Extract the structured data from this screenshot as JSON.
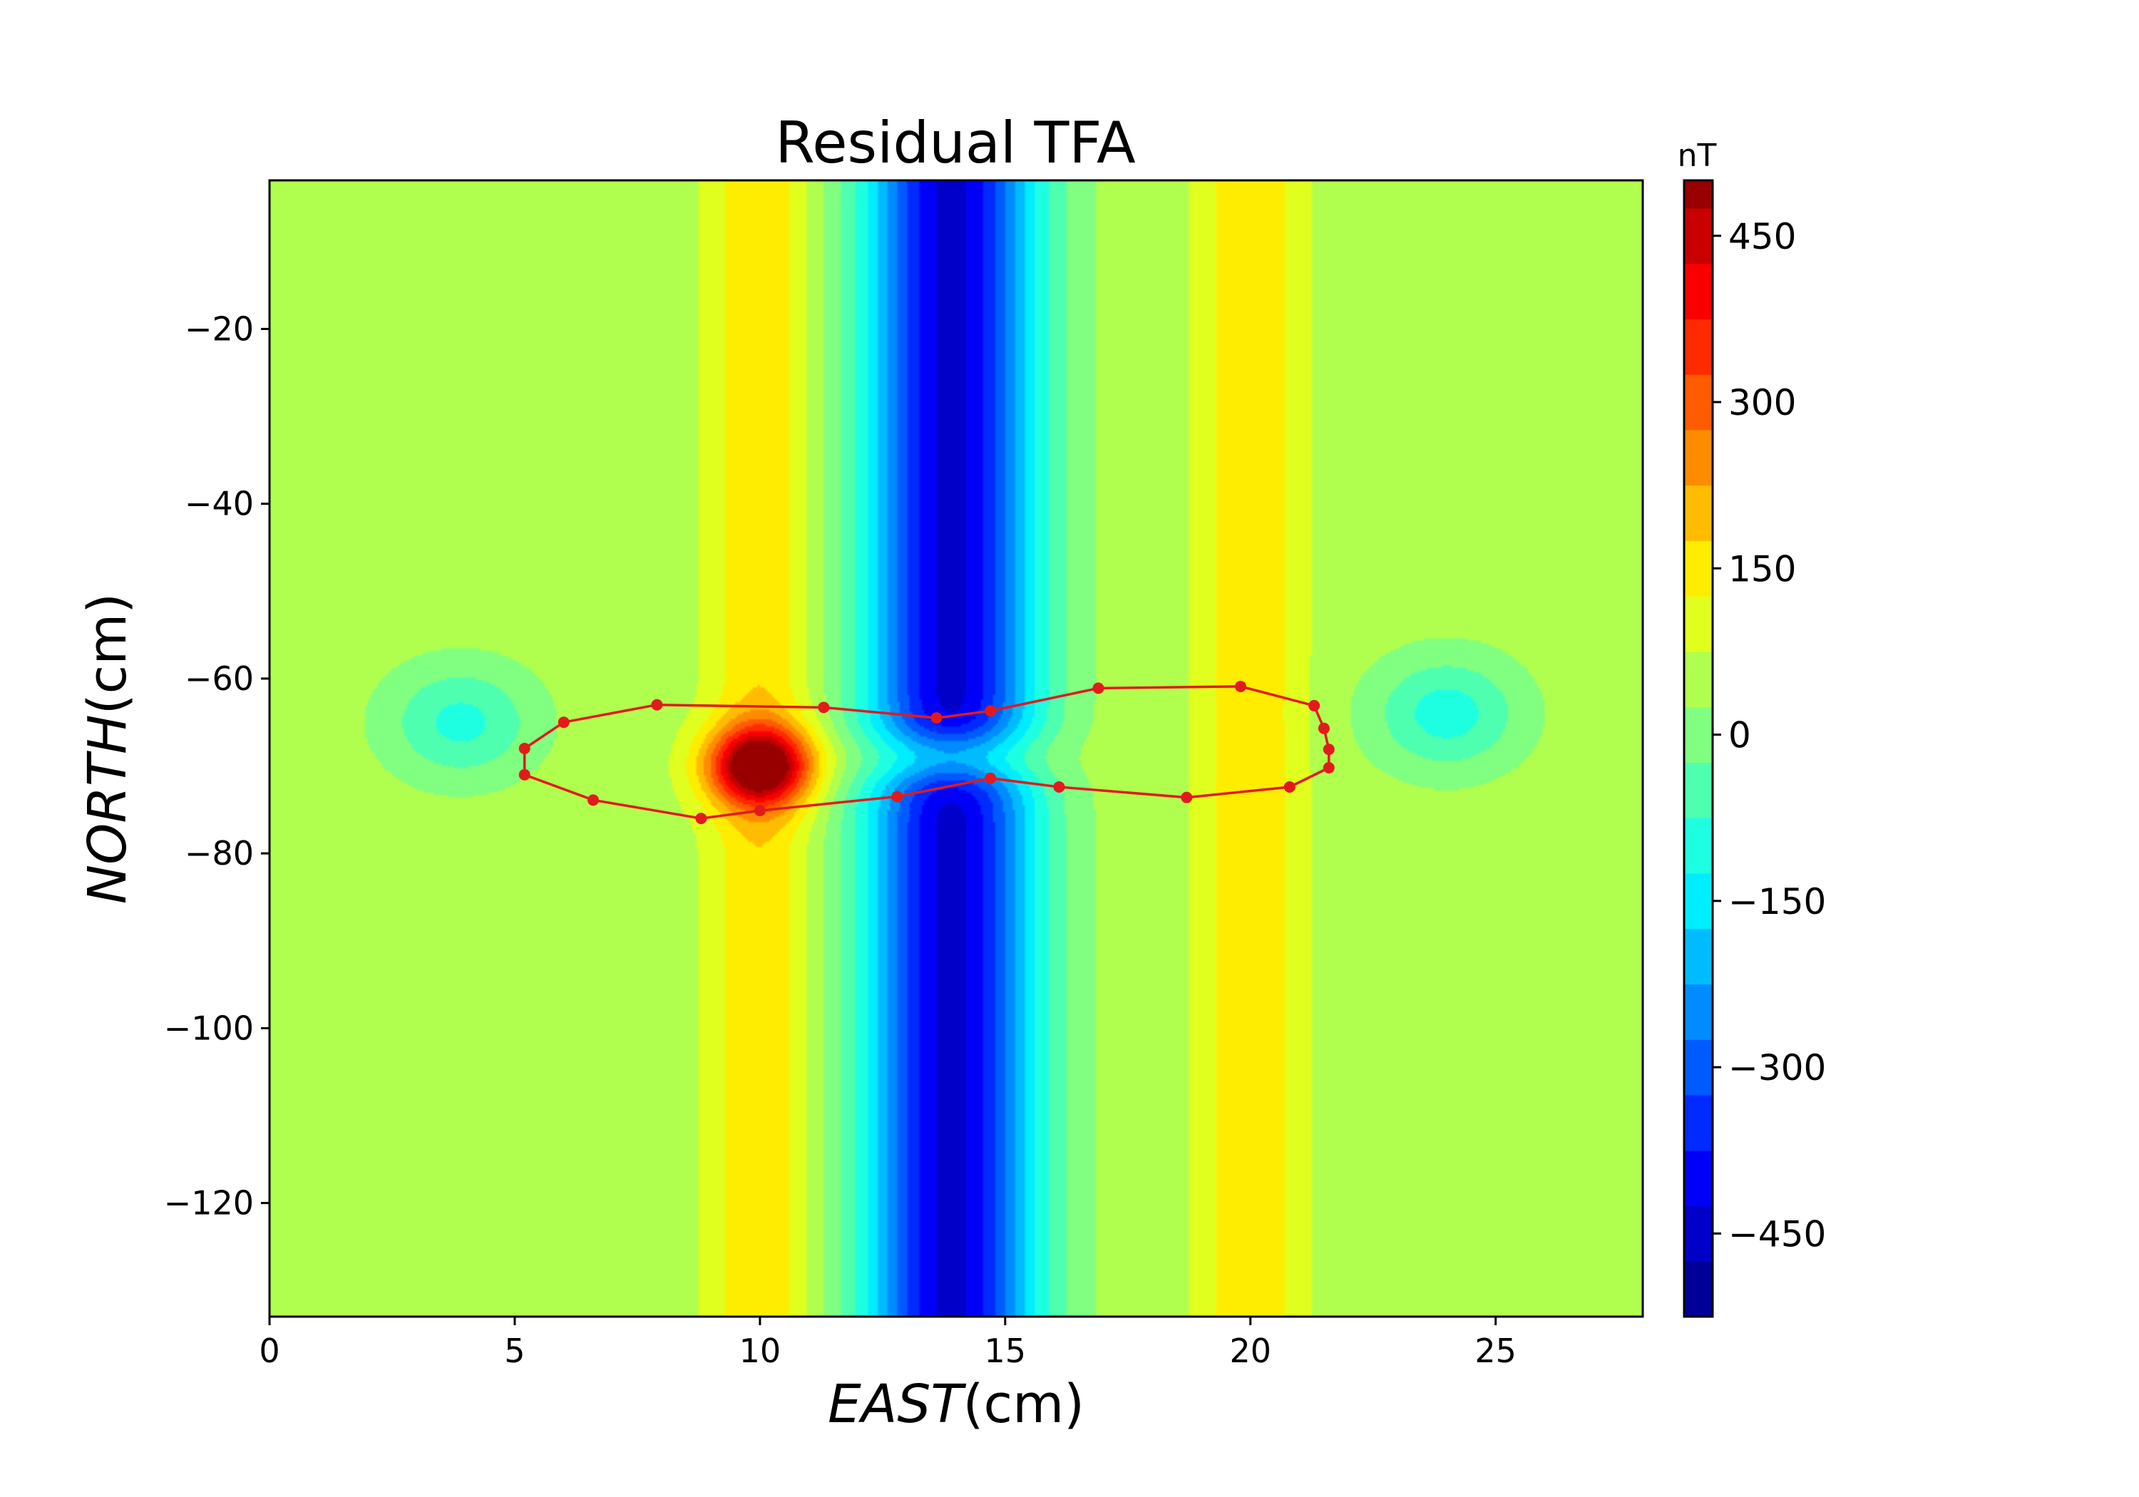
{
  "chart_data": {
    "type": "heatmap",
    "subtype": "filled-contour",
    "title": "Residual TFA",
    "xlabel": {
      "var": "EAST",
      "unit": "(cm)"
    },
    "ylabel": {
      "var": "NORTH",
      "unit": "(cm)"
    },
    "xlim": [
      0,
      28
    ],
    "ylim": [
      -133,
      -3
    ],
    "xticks": [
      0,
      5,
      10,
      15,
      20,
      25
    ],
    "yticks": [
      -20,
      -40,
      -60,
      -80,
      -100,
      -120
    ],
    "xtick_labels": [
      "0",
      "5",
      "10",
      "15",
      "20",
      "25"
    ],
    "ytick_labels": [
      "−20",
      "−40",
      "−60",
      "−80",
      "−100",
      "−120"
    ],
    "colormap": "jet",
    "colorbar": {
      "unit": "nT",
      "range": [
        -525,
        500
      ],
      "levels": [
        -525,
        -475,
        -425,
        -375,
        -325,
        -275,
        -225,
        -175,
        -125,
        -75,
        -25,
        25,
        75,
        125,
        175,
        225,
        275,
        325,
        375,
        425,
        475,
        500
      ],
      "ticks": [
        450,
        300,
        150,
        0,
        -150,
        -300,
        -450
      ],
      "tick_labels": [
        "450",
        "300",
        "150",
        "0",
        "−150",
        "−300",
        "−450"
      ]
    },
    "field": {
      "background_nT": 50,
      "features": [
        {
          "kind": "negative-band",
          "center_x": 13.9,
          "peak_nT": -490,
          "width": 1.7
        },
        {
          "kind": "positive-peak",
          "x": 10.0,
          "y": -70,
          "peak_nT": 470
        },
        {
          "kind": "positive-band",
          "center_x": 10.0,
          "peak_nT": 120
        },
        {
          "kind": "positive-band",
          "center_x": 20.0,
          "peak_nT": 120
        },
        {
          "kind": "negative-lobe",
          "x": 3.9,
          "y": -65,
          "peak_nT": -140
        },
        {
          "kind": "negative-lobe",
          "x": 24.0,
          "y": -64,
          "peak_nT": -150
        }
      ]
    },
    "overlay": {
      "name": "outline",
      "color": "#e31a1c",
      "points": [
        [
          5.2,
          -68
        ],
        [
          6.0,
          -65
        ],
        [
          7.9,
          -63
        ],
        [
          11.3,
          -63.3
        ],
        [
          13.6,
          -64.5
        ],
        [
          14.7,
          -63.7
        ],
        [
          16.9,
          -61.1
        ],
        [
          19.8,
          -60.9
        ],
        [
          21.3,
          -63.1
        ],
        [
          21.5,
          -65.7
        ],
        [
          21.6,
          -68.1
        ],
        [
          21.6,
          -70.2
        ],
        [
          20.8,
          -72.4
        ],
        [
          18.7,
          -73.6
        ],
        [
          16.1,
          -72.4
        ],
        [
          14.7,
          -71.4
        ],
        [
          12.8,
          -73.5
        ],
        [
          10.0,
          -75.1
        ],
        [
          8.8,
          -76
        ],
        [
          6.6,
          -73.9
        ],
        [
          5.2,
          -71
        ]
      ]
    }
  }
}
